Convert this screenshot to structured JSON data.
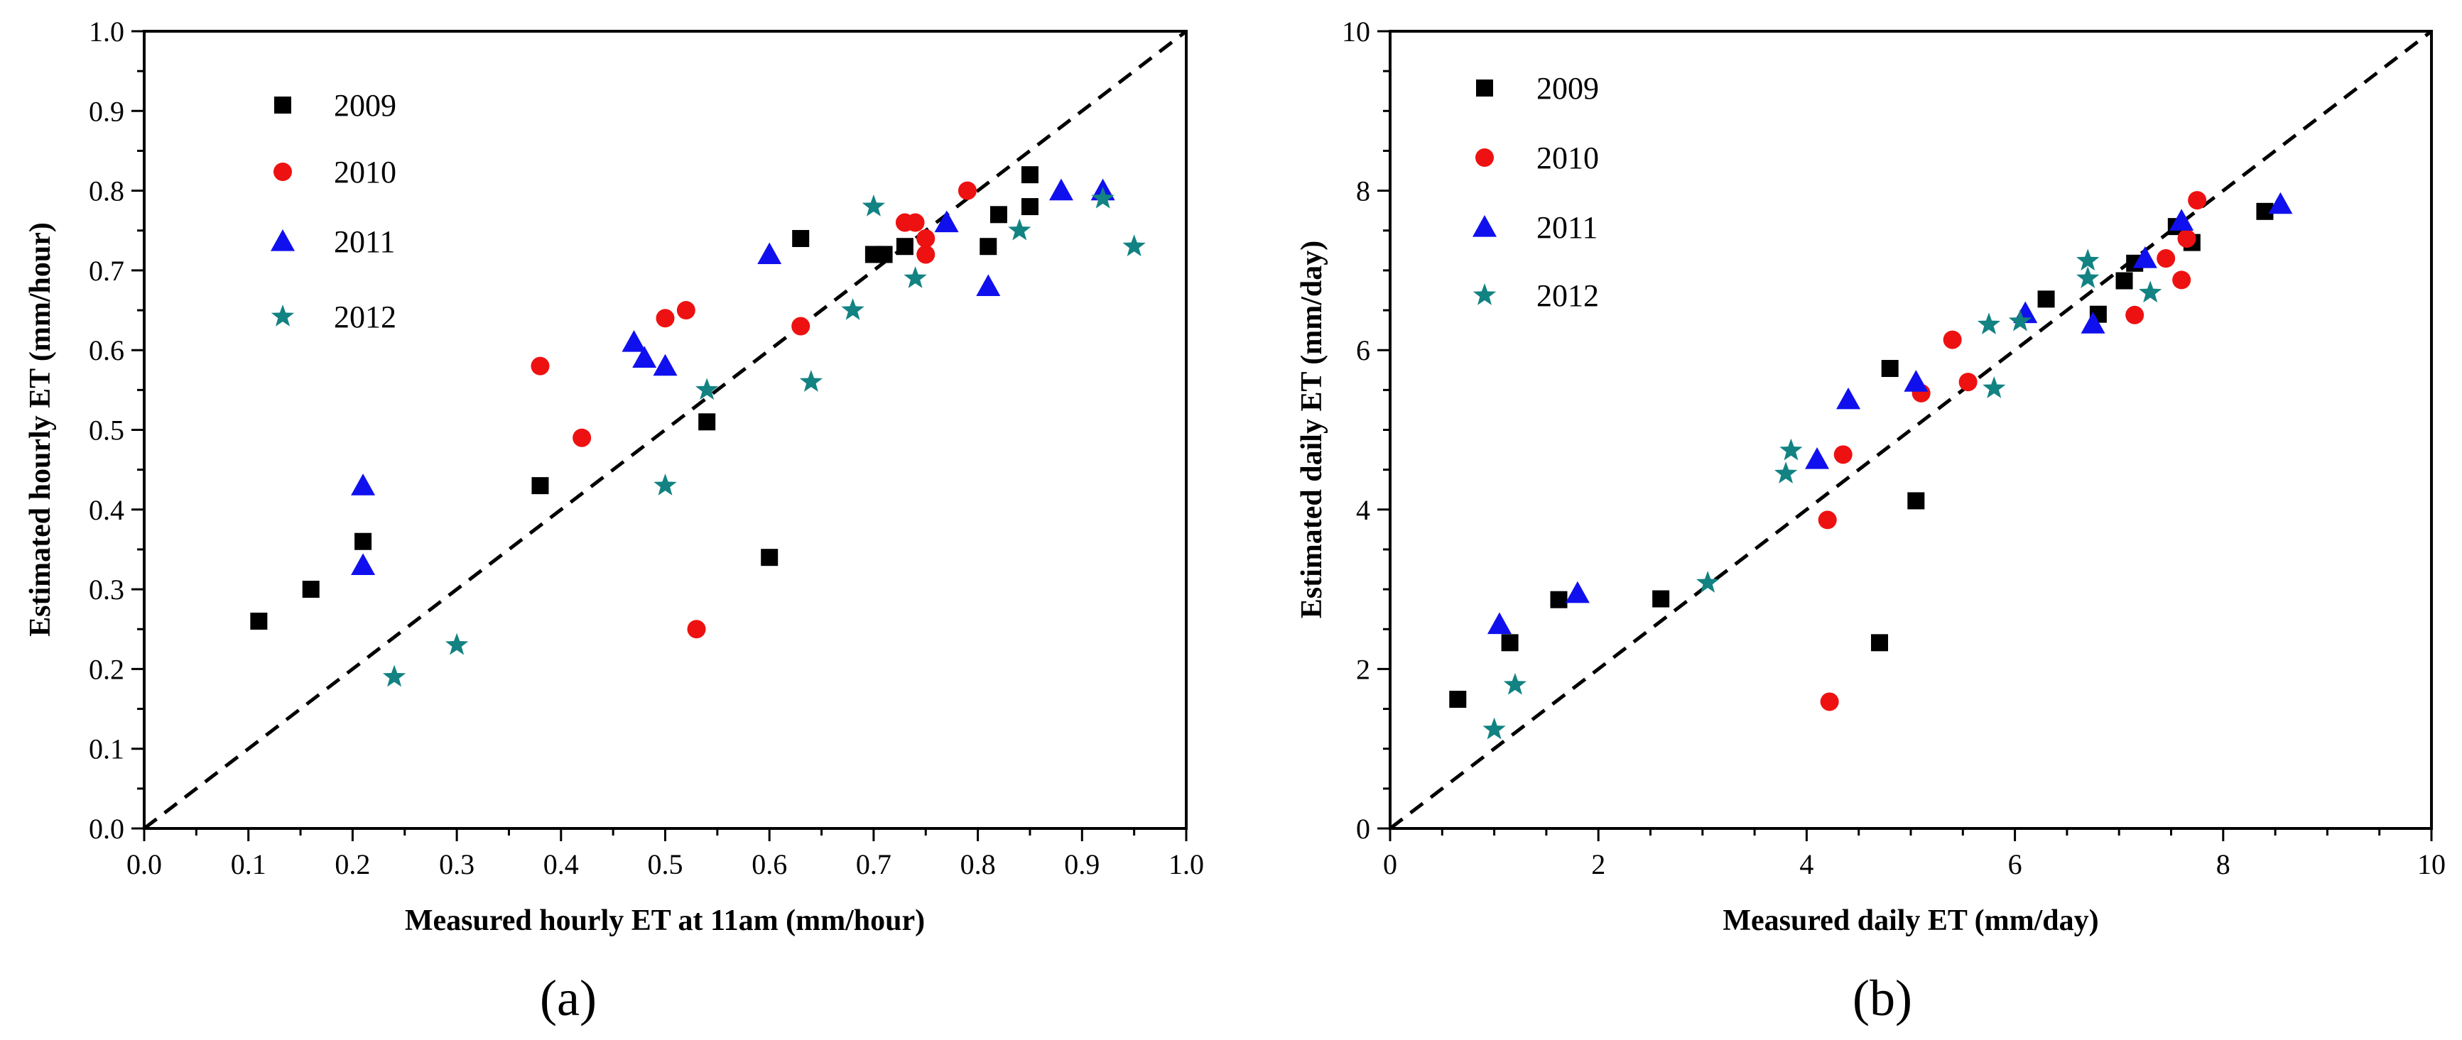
{
  "colors": {
    "2009": "#000000",
    "2010": "#ee1111",
    "2011": "#1010ee",
    "2012": "#128282",
    "reference_line": "#000000"
  },
  "chart_data": [
    {
      "type": "scatter",
      "panel": "(a)",
      "xlabel": "Measured hourly ET at 11am (mm/hour)",
      "ylabel": "Estimated hourly ET (mm/hour)",
      "xlim": [
        0.0,
        1.0
      ],
      "ylim": [
        0.0,
        1.0
      ],
      "xticks": [
        "0.0",
        "0.1",
        "0.2",
        "0.3",
        "0.4",
        "0.5",
        "0.6",
        "0.7",
        "0.8",
        "0.9",
        "1.0"
      ],
      "yticks": [
        "0.0",
        "0.1",
        "0.2",
        "0.3",
        "0.4",
        "0.5",
        "0.6",
        "0.7",
        "0.8",
        "0.9",
        "1.0"
      ],
      "reference_line": "1:1",
      "legend_position": "top-left",
      "series": [
        {
          "name": "2009",
          "marker": "square",
          "points": [
            [
              0.11,
              0.26
            ],
            [
              0.16,
              0.3
            ],
            [
              0.21,
              0.36
            ],
            [
              0.38,
              0.43
            ],
            [
              0.54,
              0.51
            ],
            [
              0.6,
              0.34
            ],
            [
              0.63,
              0.74
            ],
            [
              0.7,
              0.72
            ],
            [
              0.71,
              0.72
            ],
            [
              0.73,
              0.73
            ],
            [
              0.81,
              0.73
            ],
            [
              0.82,
              0.77
            ],
            [
              0.85,
              0.78
            ],
            [
              0.85,
              0.82
            ]
          ]
        },
        {
          "name": "2010",
          "marker": "circle",
          "points": [
            [
              0.38,
              0.58
            ],
            [
              0.42,
              0.49
            ],
            [
              0.5,
              0.64
            ],
            [
              0.52,
              0.65
            ],
            [
              0.53,
              0.25
            ],
            [
              0.63,
              0.63
            ],
            [
              0.73,
              0.76
            ],
            [
              0.74,
              0.76
            ],
            [
              0.75,
              0.72
            ],
            [
              0.75,
              0.74
            ],
            [
              0.79,
              0.8
            ]
          ]
        },
        {
          "name": "2011",
          "marker": "triangle",
          "points": [
            [
              0.21,
              0.43
            ],
            [
              0.21,
              0.33
            ],
            [
              0.47,
              0.61
            ],
            [
              0.48,
              0.59
            ],
            [
              0.5,
              0.58
            ],
            [
              0.6,
              0.72
            ],
            [
              0.77,
              0.76
            ],
            [
              0.81,
              0.68
            ],
            [
              0.88,
              0.8
            ],
            [
              0.92,
              0.8
            ]
          ]
        },
        {
          "name": "2012",
          "marker": "star",
          "points": [
            [
              0.24,
              0.19
            ],
            [
              0.3,
              0.23
            ],
            [
              0.5,
              0.43
            ],
            [
              0.54,
              0.55
            ],
            [
              0.64,
              0.56
            ],
            [
              0.68,
              0.65
            ],
            [
              0.7,
              0.78
            ],
            [
              0.74,
              0.69
            ],
            [
              0.84,
              0.75
            ],
            [
              0.92,
              0.79
            ],
            [
              0.95,
              0.73
            ]
          ]
        }
      ]
    },
    {
      "type": "scatter",
      "panel": "(b)",
      "xlabel": "Measured daily ET (mm/day)",
      "ylabel": "Estimated daily ET (mm/day)",
      "xlim": [
        0,
        10
      ],
      "ylim": [
        0,
        10
      ],
      "xticks": [
        "0",
        "2",
        "4",
        "6",
        "8",
        "10"
      ],
      "yticks": [
        "0",
        "2",
        "4",
        "6",
        "8",
        "10"
      ],
      "reference_line": "1:1",
      "legend_position": "top-left",
      "series": [
        {
          "name": "2009",
          "marker": "square",
          "points": [
            [
              0.65,
              1.62
            ],
            [
              1.15,
              2.33
            ],
            [
              1.62,
              2.87
            ],
            [
              2.6,
              2.88
            ],
            [
              4.7,
              2.33
            ],
            [
              4.8,
              5.77
            ],
            [
              5.05,
              4.11
            ],
            [
              6.3,
              6.64
            ],
            [
              6.8,
              6.45
            ],
            [
              7.05,
              6.87
            ],
            [
              7.15,
              7.09
            ],
            [
              7.55,
              7.55
            ],
            [
              7.7,
              7.35
            ],
            [
              8.4,
              7.74
            ]
          ]
        },
        {
          "name": "2010",
          "marker": "circle",
          "points": [
            [
              4.2,
              3.87
            ],
            [
              4.22,
              1.59
            ],
            [
              4.35,
              4.69
            ],
            [
              5.1,
              5.46
            ],
            [
              5.4,
              6.13
            ],
            [
              5.55,
              5.6
            ],
            [
              7.15,
              6.44
            ],
            [
              7.45,
              7.15
            ],
            [
              7.6,
              6.88
            ],
            [
              7.65,
              7.4
            ],
            [
              7.75,
              7.88
            ]
          ]
        },
        {
          "name": "2011",
          "marker": "triangle",
          "points": [
            [
              1.05,
              2.56
            ],
            [
              1.8,
              2.95
            ],
            [
              4.1,
              4.63
            ],
            [
              4.4,
              5.38
            ],
            [
              5.05,
              5.6
            ],
            [
              6.1,
              6.46
            ],
            [
              6.75,
              6.33
            ],
            [
              7.25,
              7.15
            ],
            [
              7.6,
              7.62
            ],
            [
              8.55,
              7.83
            ]
          ]
        },
        {
          "name": "2012",
          "marker": "star",
          "points": [
            [
              1.0,
              1.24
            ],
            [
              1.2,
              1.8
            ],
            [
              3.05,
              3.08
            ],
            [
              3.8,
              4.45
            ],
            [
              3.85,
              4.74
            ],
            [
              5.75,
              6.32
            ],
            [
              5.8,
              5.52
            ],
            [
              6.05,
              6.36
            ],
            [
              6.7,
              6.9
            ],
            [
              6.7,
              7.12
            ],
            [
              7.3,
              6.72
            ]
          ]
        }
      ]
    }
  ]
}
